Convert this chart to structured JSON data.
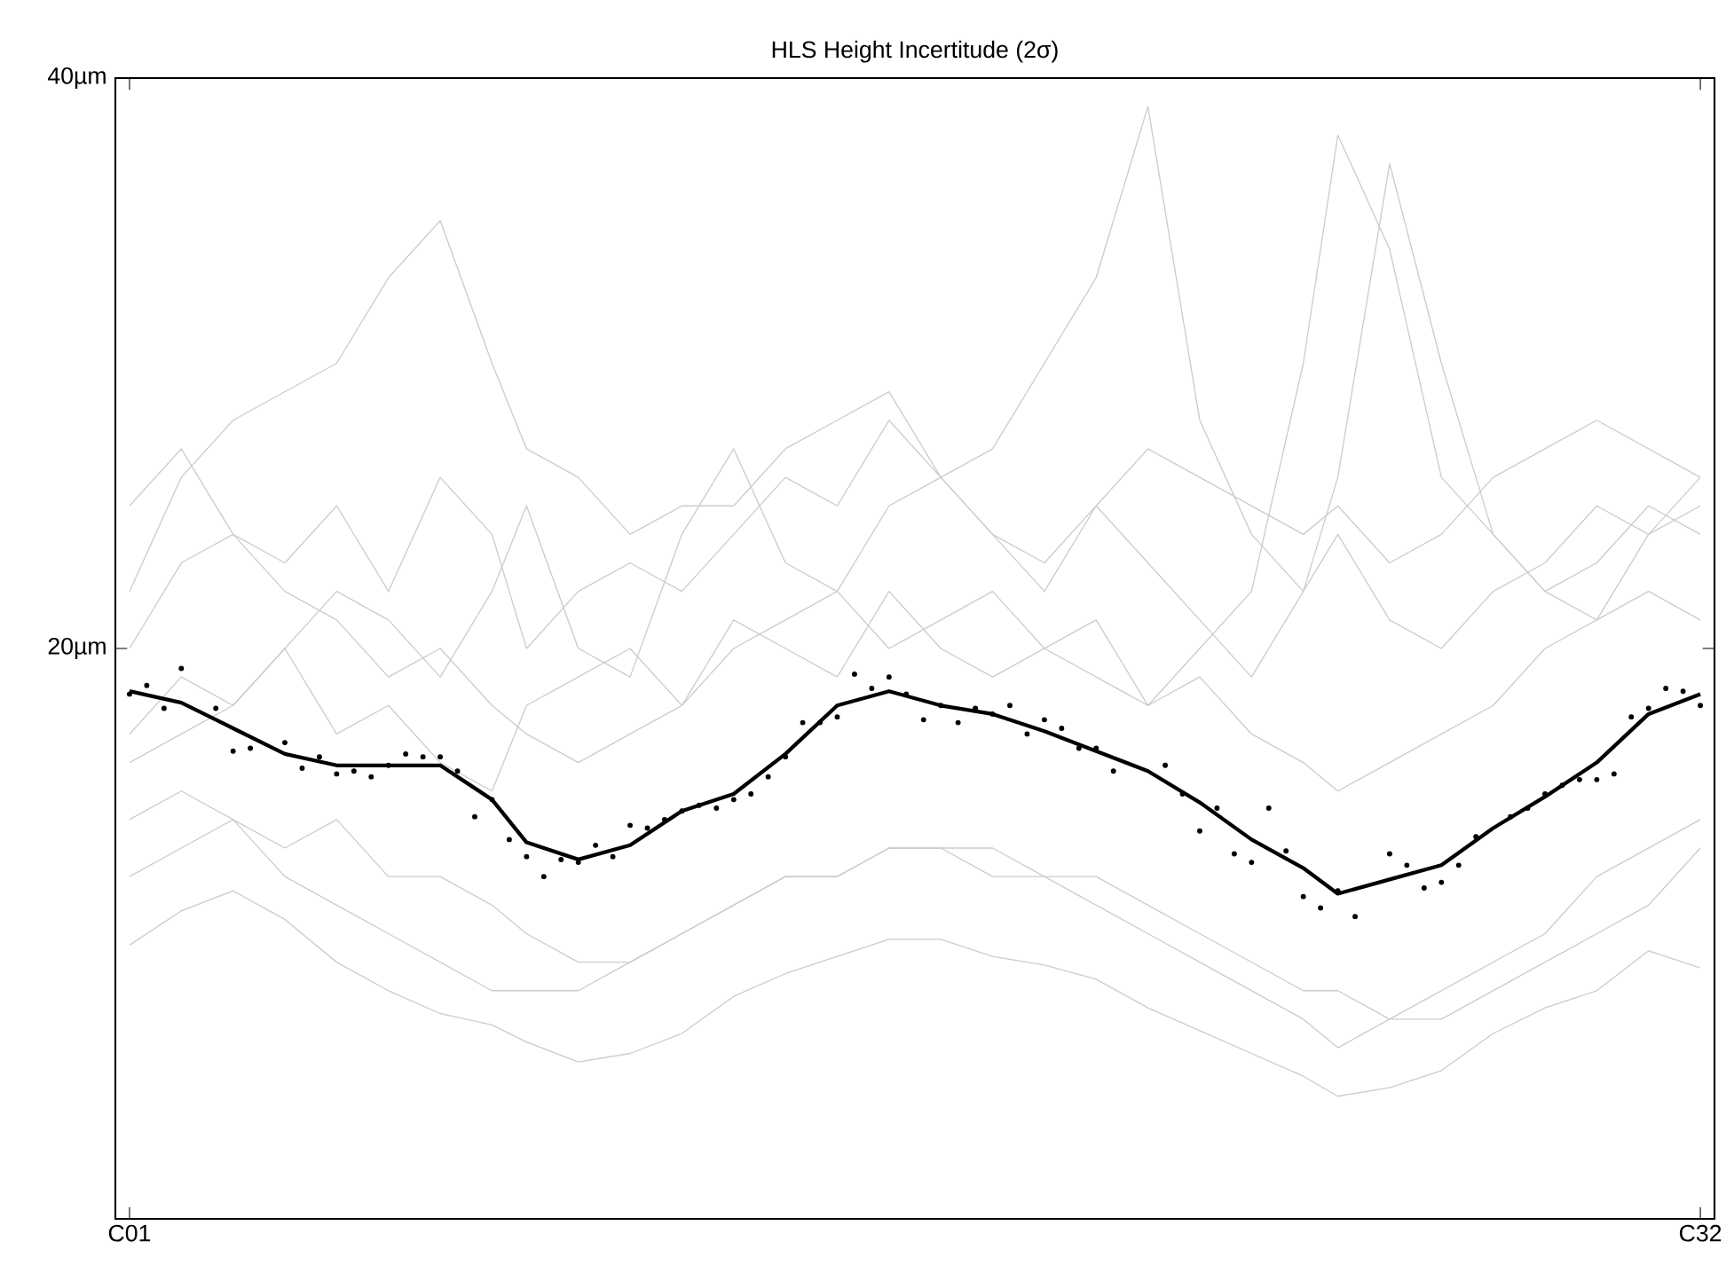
{
  "chart_data": {
    "type": "line",
    "title": "HLS Height Incertitude (2σ)",
    "categories": [
      "C01",
      null,
      null,
      null,
      null,
      null,
      null,
      null,
      null,
      null,
      null,
      null,
      null,
      null,
      null,
      null,
      null,
      null,
      null,
      null,
      null,
      null,
      null,
      null,
      null,
      null,
      null,
      null,
      null,
      null,
      null,
      null,
      null,
      null,
      null,
      null,
      null,
      null,
      null,
      null,
      null,
      null,
      null,
      null,
      null,
      null,
      null,
      null,
      null,
      null,
      null,
      null,
      null,
      null,
      null,
      null,
      null,
      null,
      null,
      null,
      null,
      null,
      null,
      null,
      null,
      null,
      null,
      null,
      null,
      null,
      null,
      null,
      null,
      null,
      null,
      null,
      null,
      null,
      null,
      null,
      null,
      null,
      null,
      null,
      null,
      null,
      null,
      null,
      null,
      null,
      null,
      "C32"
    ],
    "ylim": [
      0,
      40
    ],
    "yticks": [
      {
        "value": 0,
        "label": null
      },
      {
        "value": 20,
        "label": "20µm"
      },
      {
        "value": 40,
        "label": "40µm"
      }
    ],
    "series": [
      {
        "color": "#cccccc",
        "values": [
          9.6,
          null,
          null,
          10.8,
          null,
          null,
          11.5,
          null,
          null,
          10.5,
          null,
          null,
          9.0,
          null,
          null,
          8.0,
          null,
          null,
          7.2,
          null,
          null,
          6.8,
          null,
          6.2,
          null,
          null,
          5.5,
          null,
          null,
          5.8,
          null,
          null,
          6.5,
          null,
          null,
          7.8,
          null,
          null,
          8.6,
          null,
          null,
          9.2,
          null,
          null,
          9.8,
          null,
          null,
          9.8,
          null,
          null,
          9.2,
          null,
          null,
          8.9,
          null,
          null,
          8.4,
          null,
          null,
          7.4,
          null,
          null,
          6.6,
          null,
          null,
          5.8,
          null,
          null,
          5.0,
          null,
          4.3,
          null,
          null,
          4.6,
          null,
          null,
          5.2,
          null,
          null,
          6.5,
          null,
          null,
          7.4,
          null,
          null,
          8.0,
          null,
          null,
          9.4,
          null,
          null,
          8.8
        ]
      },
      {
        "color": "#cccccc",
        "values": [
          16,
          null,
          null,
          17,
          null,
          null,
          18,
          null,
          null,
          20,
          null,
          null,
          22,
          null,
          null,
          21,
          null,
          null,
          19,
          null,
          null,
          22,
          null,
          25,
          null,
          null,
          20,
          null,
          null,
          19,
          null,
          null,
          24,
          null,
          null,
          27,
          null,
          null,
          23,
          null,
          null,
          22,
          null,
          null,
          25,
          null,
          null,
          26,
          null,
          null,
          27,
          null,
          null,
          30,
          null,
          null,
          33,
          null,
          null,
          39,
          null,
          null,
          28,
          null,
          null,
          24,
          null,
          null,
          22,
          null,
          26,
          null,
          null,
          37,
          null,
          null,
          30,
          null,
          null,
          24,
          null,
          null,
          22,
          null,
          null,
          21,
          null,
          null,
          24,
          null,
          null,
          26
        ]
      },
      {
        "color": "#cccccc",
        "values": [
          22,
          null,
          null,
          26,
          null,
          null,
          28,
          null,
          null,
          29,
          null,
          null,
          30,
          null,
          null,
          33,
          null,
          null,
          35,
          null,
          null,
          30,
          null,
          27,
          null,
          null,
          26,
          null,
          null,
          24,
          null,
          null,
          25,
          null,
          null,
          25,
          null,
          null,
          27,
          null,
          null,
          28,
          null,
          null,
          29,
          null,
          null,
          26,
          null,
          null,
          24,
          null,
          null,
          23,
          null,
          null,
          25,
          null,
          null,
          27,
          null,
          null,
          26,
          null,
          null,
          25,
          null,
          null,
          24,
          null,
          25,
          null,
          null,
          23,
          null,
          null,
          24,
          null,
          null,
          26,
          null,
          null,
          27,
          null,
          null,
          28,
          null,
          null,
          27,
          null,
          null,
          26
        ]
      },
      {
        "color": "#cccccc",
        "values": [
          17,
          null,
          null,
          19,
          null,
          null,
          18,
          null,
          null,
          20,
          null,
          null,
          17,
          null,
          null,
          18,
          null,
          null,
          16,
          null,
          null,
          15,
          null,
          18,
          null,
          null,
          19,
          null,
          null,
          20,
          null,
          null,
          18,
          null,
          null,
          21,
          null,
          null,
          20,
          null,
          null,
          19,
          null,
          null,
          22,
          null,
          null,
          20,
          null,
          null,
          19,
          null,
          null,
          20,
          null,
          null,
          21,
          null,
          null,
          18,
          null,
          null,
          20,
          null,
          null,
          22,
          null,
          null,
          30,
          null,
          38,
          null,
          null,
          34,
          null,
          null,
          26,
          null,
          null,
          24,
          null,
          null,
          22,
          null,
          null,
          23,
          null,
          null,
          25,
          null,
          null,
          24
        ]
      },
      {
        "color": "#cccccc",
        "values": [
          14,
          null,
          null,
          15,
          null,
          null,
          14,
          null,
          null,
          13,
          null,
          null,
          14,
          null,
          null,
          12,
          null,
          null,
          12,
          null,
          null,
          11,
          null,
          10,
          null,
          null,
          9,
          null,
          null,
          9,
          null,
          null,
          10,
          null,
          null,
          11,
          null,
          null,
          12,
          null,
          null,
          12,
          null,
          null,
          13,
          null,
          null,
          13,
          null,
          null,
          13,
          null,
          null,
          12,
          null,
          null,
          12,
          null,
          null,
          11,
          null,
          null,
          10,
          null,
          null,
          9,
          null,
          null,
          8,
          null,
          8,
          null,
          null,
          7,
          null,
          null,
          8,
          null,
          null,
          9,
          null,
          null,
          10,
          null,
          null,
          12,
          null,
          null,
          13,
          null,
          null,
          14
        ]
      },
      {
        "color": "#cccccc",
        "values": [
          20,
          null,
          null,
          23,
          null,
          null,
          24,
          null,
          null,
          22,
          null,
          null,
          21,
          null,
          null,
          19,
          null,
          null,
          20,
          null,
          null,
          18,
          null,
          17,
          null,
          null,
          16,
          null,
          null,
          17,
          null,
          null,
          18,
          null,
          null,
          20,
          null,
          null,
          21,
          null,
          null,
          22,
          null,
          null,
          20,
          null,
          null,
          21,
          null,
          null,
          22,
          null,
          null,
          20,
          null,
          null,
          19,
          null,
          null,
          18,
          null,
          null,
          19,
          null,
          null,
          17,
          null,
          null,
          16,
          null,
          15,
          null,
          null,
          16,
          null,
          null,
          17,
          null,
          null,
          18,
          null,
          null,
          20,
          null,
          null,
          21,
          null,
          null,
          22,
          null,
          null,
          21
        ]
      },
      {
        "color": "#cccccc",
        "values": [
          12,
          null,
          null,
          13,
          null,
          null,
          14,
          null,
          null,
          12,
          null,
          null,
          11,
          null,
          null,
          10,
          null,
          null,
          9,
          null,
          null,
          8,
          null,
          8,
          null,
          null,
          8,
          null,
          null,
          9,
          null,
          null,
          10,
          null,
          null,
          11,
          null,
          null,
          12,
          null,
          null,
          12,
          null,
          null,
          13,
          null,
          null,
          13,
          null,
          null,
          12,
          null,
          null,
          12,
          null,
          null,
          11,
          null,
          null,
          10,
          null,
          null,
          9,
          null,
          null,
          8,
          null,
          null,
          7,
          null,
          6,
          null,
          null,
          7,
          null,
          null,
          7,
          null,
          null,
          8,
          null,
          null,
          9,
          null,
          null,
          10,
          null,
          null,
          11,
          null,
          null,
          13
        ]
      },
      {
        "color": "#cccccc",
        "values": [
          25,
          null,
          null,
          27,
          null,
          null,
          24,
          null,
          null,
          23,
          null,
          null,
          25,
          null,
          null,
          22,
          null,
          null,
          26,
          null,
          null,
          24,
          null,
          20,
          null,
          null,
          22,
          null,
          null,
          23,
          null,
          null,
          22,
          null,
          null,
          24,
          null,
          null,
          26,
          null,
          null,
          25,
          null,
          null,
          28,
          null,
          null,
          26,
          null,
          null,
          24,
          null,
          null,
          22,
          null,
          null,
          25,
          null,
          null,
          23,
          null,
          null,
          21,
          null,
          null,
          19,
          null,
          null,
          22,
          null,
          24,
          null,
          null,
          21,
          null,
          null,
          20,
          null,
          null,
          22,
          null,
          null,
          23,
          null,
          null,
          25,
          null,
          null,
          24,
          null,
          null,
          25
        ]
      },
      {
        "type": "scatter",
        "color": "#000000",
        "marker": "circle",
        "values": [
          18.4,
          18.7,
          17.9,
          19.3,
          null,
          17.9,
          16.4,
          16.5,
          null,
          16.7,
          15.8,
          16.2,
          15.6,
          15.7,
          15.5,
          15.9,
          16.3,
          16.2,
          16.2,
          15.7,
          14.1,
          14.7,
          13.3,
          12.7,
          12.0,
          12.6,
          12.5,
          13.1,
          12.7,
          13.8,
          13.7,
          14.0,
          14.3,
          14.5,
          14.4,
          14.7,
          14.9,
          15.5,
          16.2,
          17.4,
          17.4,
          17.6,
          19.1,
          18.6,
          19.0,
          18.4,
          17.5,
          18.0,
          17.4,
          17.9,
          17.7,
          18.0,
          17.0,
          17.5,
          17.2,
          16.5,
          16.5,
          15.7,
          null,
          null,
          15.9,
          14.9,
          13.6,
          14.4,
          12.8,
          12.5,
          14.4,
          12.9,
          11.3,
          10.9,
          11.5,
          10.6,
          null,
          12.8,
          12.4,
          11.6,
          11.8,
          12.4,
          13.4,
          null,
          14.1,
          14.4,
          14.9,
          15.2,
          15.4,
          15.4,
          15.6,
          17.6,
          17.9,
          18.6,
          18.5,
          18.0
        ]
      },
      {
        "color": "#000000",
        "values": [
          18.5,
          null,
          null,
          18.1,
          null,
          null,
          17.2,
          null,
          null,
          16.3,
          null,
          null,
          15.9,
          null,
          null,
          15.9,
          null,
          null,
          15.9,
          null,
          null,
          14.7,
          null,
          13.2,
          null,
          null,
          12.6,
          null,
          null,
          13.1,
          null,
          null,
          14.3,
          null,
          null,
          14.9,
          null,
          null,
          16.3,
          null,
          null,
          18.0,
          null,
          null,
          18.5,
          null,
          null,
          18.0,
          null,
          null,
          17.7,
          null,
          null,
          17.1,
          null,
          null,
          16.4,
          null,
          null,
          15.7,
          null,
          null,
          14.6,
          null,
          null,
          13.3,
          null,
          null,
          12.3,
          null,
          11.4,
          null,
          null,
          11.9,
          null,
          null,
          12.4,
          null,
          null,
          13.7,
          null,
          null,
          14.8,
          null,
          null,
          16.0,
          null,
          null,
          17.7,
          null,
          null,
          18.4
        ]
      }
    ]
  }
}
